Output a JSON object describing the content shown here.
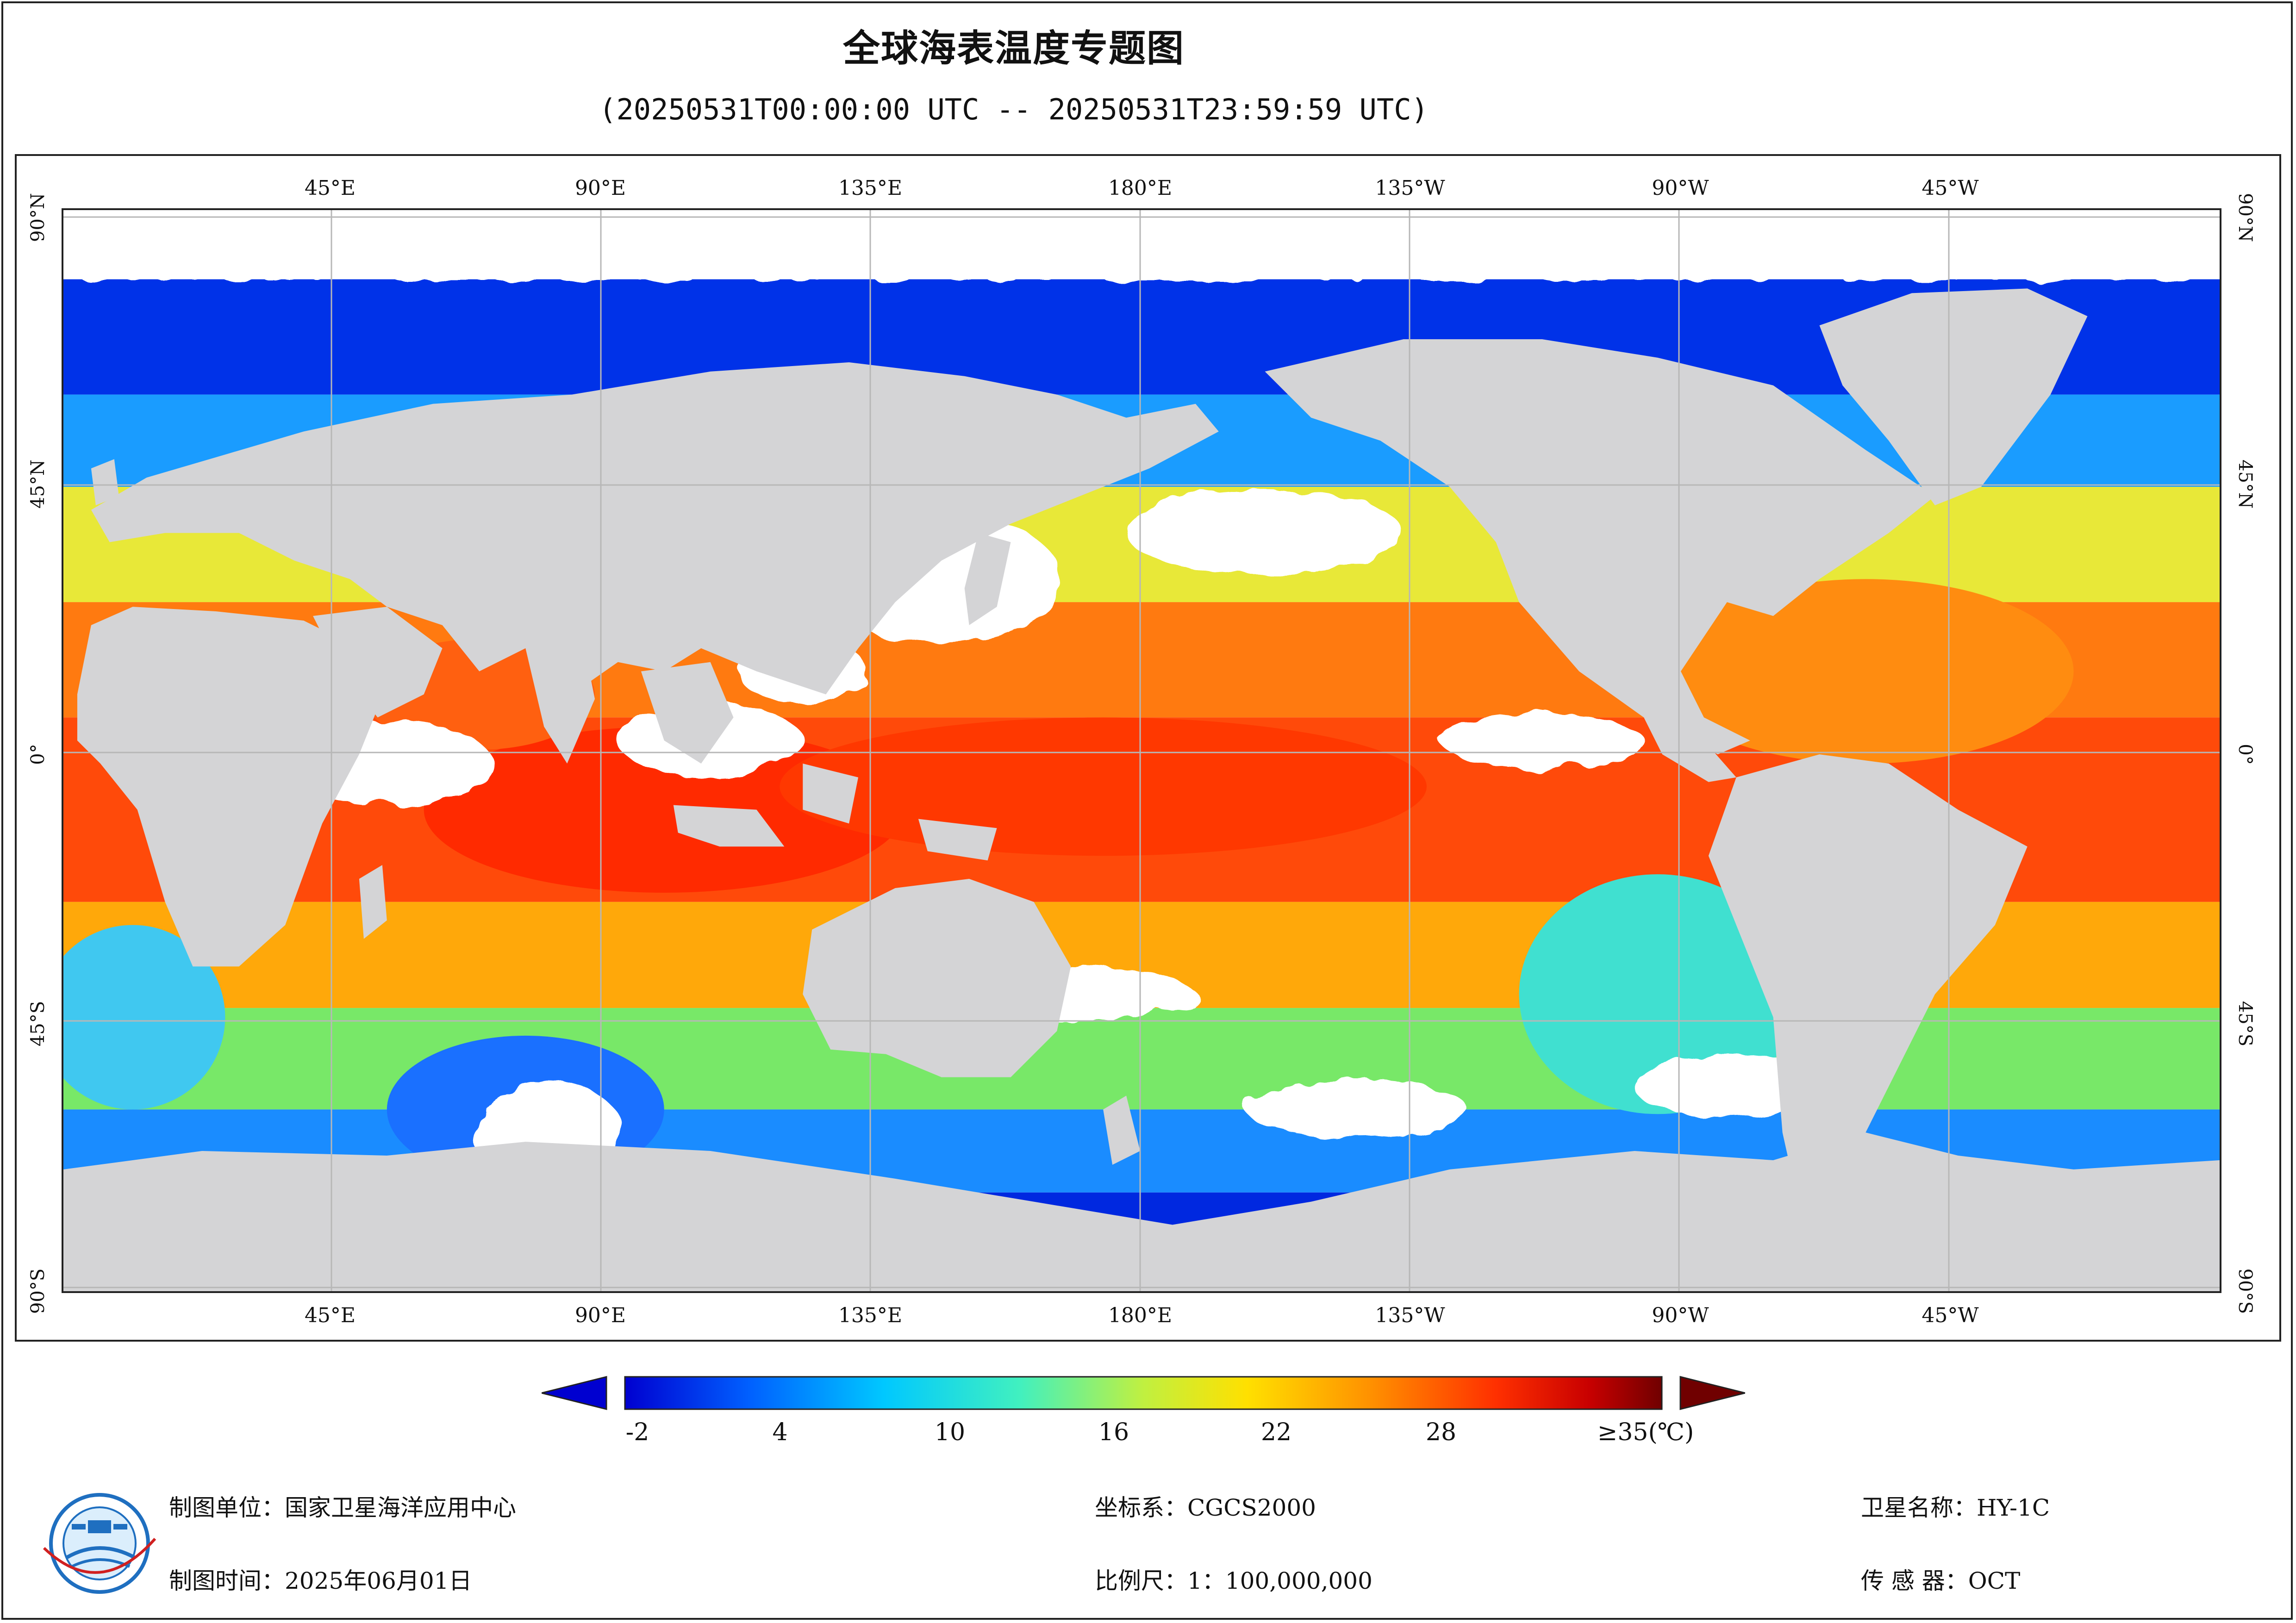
{
  "title": "全球海表温度专题图",
  "subtitle": "(20250531T00:00:00 UTC -- 20250531T23:59:59 UTC)",
  "map": {
    "lon_labels": [
      "45°E",
      "90°E",
      "135°E",
      "180°E",
      "135°W",
      "90°W",
      "45°W"
    ],
    "lat_labels": [
      "90°N",
      "45°N",
      "0°",
      "45°S",
      "90°S"
    ],
    "colors": {
      "land": "#d4d4d6",
      "no_data": "#ffffff",
      "grid": "#b7b7b7"
    }
  },
  "colorbar": {
    "ticks": [
      "-2",
      "4",
      "10",
      "16",
      "22",
      "28",
      "≥35(℃)"
    ],
    "colors": [
      "#0000d0",
      "#0060ff",
      "#00c8ff",
      "#40f0c0",
      "#c0f040",
      "#ffe000",
      "#ff9000",
      "#ff3000",
      "#c80000",
      "#700000"
    ]
  },
  "footer": {
    "unit": "制图单位：国家卫星海洋应用中心",
    "time": "制图时间：2025年06月01日",
    "coord": "坐标系：CGCS2000",
    "scale": "比例尺：1：100,000,000",
    "satellite": "卫星名称：HY-1C",
    "sensor": "传 感 器：OCT"
  }
}
